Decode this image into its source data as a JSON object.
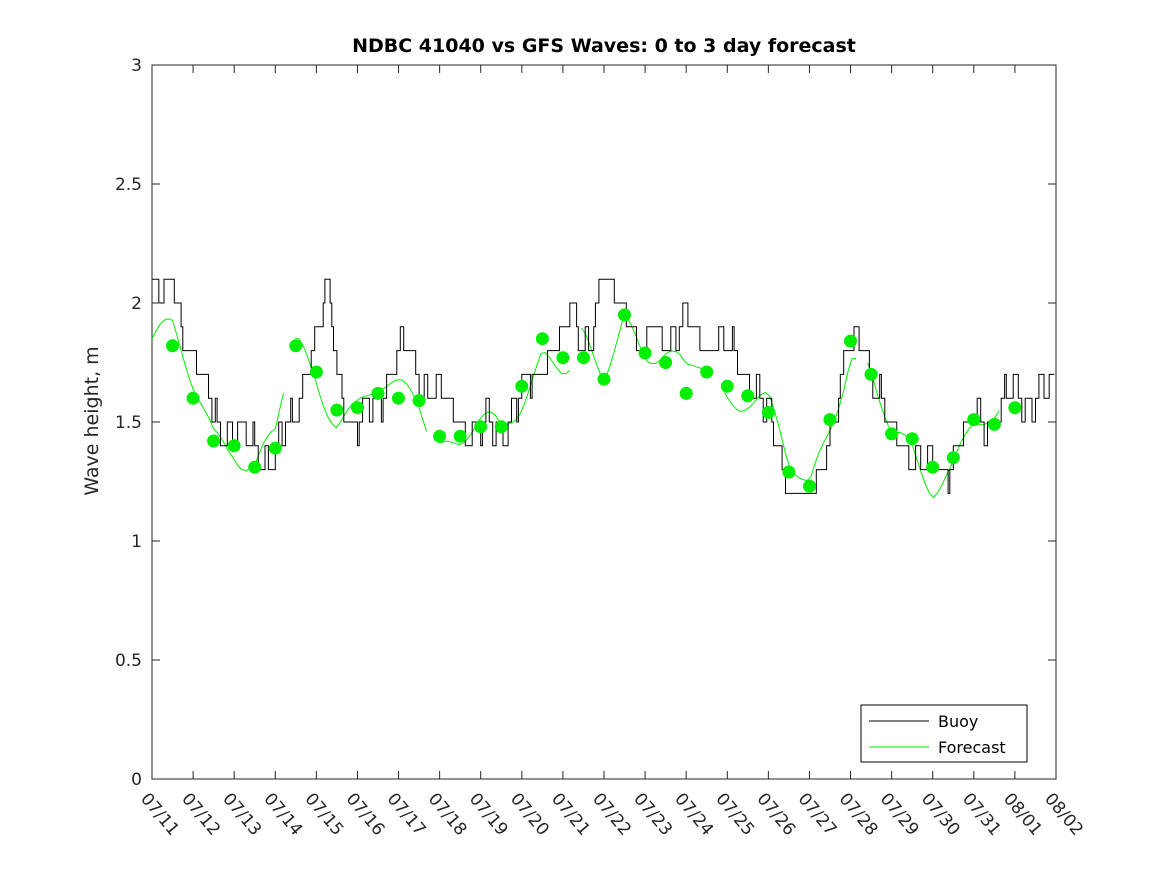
{
  "chart_data": {
    "type": "line",
    "title": "NDBC 41040 vs GFS Waves: 0 to 3 day forecast",
    "xlabel": "",
    "ylabel": "Wave height, m",
    "xlim": [
      "07/11",
      "08/02"
    ],
    "ylim": [
      0,
      3
    ],
    "x_tick_labels": [
      "07/11",
      "07/12",
      "07/13",
      "07/14",
      "07/15",
      "07/16",
      "07/17",
      "07/18",
      "07/19",
      "07/20",
      "07/21",
      "07/22",
      "07/23",
      "07/24",
      "07/25",
      "07/26",
      "07/27",
      "07/28",
      "07/29",
      "07/30",
      "07/31",
      "08/01",
      "08/02"
    ],
    "y_tick_labels": [
      "0",
      "0.5",
      "1",
      "1.5",
      "2",
      "2.5",
      "3"
    ],
    "grid": false,
    "legend_position": "bottom-right",
    "colors": {
      "buoy": "#000000",
      "forecast": "#00ee00",
      "marker": "#00ee00"
    },
    "buoy_anchor_days": [
      0,
      0.25,
      0.5,
      0.75,
      1.0,
      1.5,
      2.0,
      2.5,
      3.0,
      3.4,
      3.7,
      4.0,
      4.3,
      4.5,
      4.8,
      5.0,
      5.5,
      6.0,
      6.5,
      7.0,
      7.5,
      8.0,
      8.5,
      9.0,
      9.5,
      10.0,
      10.2,
      10.5,
      10.8,
      11.0,
      11.3,
      11.5,
      11.8,
      12.0,
      12.2,
      12.5,
      13.0,
      13.5,
      14.0,
      14.5,
      15.0,
      15.5,
      16.0,
      16.5,
      17.0,
      17.3,
      17.5,
      18.0,
      18.5,
      19.0,
      19.5,
      20.0,
      20.5,
      21.0,
      21.5,
      22.0
    ],
    "buoy_anchor_values": [
      2.05,
      2.0,
      2.1,
      1.9,
      1.75,
      1.55,
      1.45,
      1.4,
      1.35,
      1.5,
      1.7,
      1.85,
      2.05,
      1.75,
      1.5,
      1.45,
      1.6,
      1.8,
      1.7,
      1.6,
      1.5,
      1.45,
      1.5,
      1.6,
      1.75,
      1.85,
      1.95,
      1.85,
      1.95,
      2.1,
      2.0,
      2.05,
      1.8,
      1.75,
      1.9,
      1.85,
      1.9,
      1.85,
      1.8,
      1.7,
      1.5,
      1.25,
      1.12,
      1.5,
      1.8,
      1.85,
      1.7,
      1.45,
      1.35,
      1.3,
      1.35,
      1.5,
      1.55,
      1.6,
      1.62,
      1.65
    ],
    "forecast_marker_days": [
      0.5,
      1.0,
      1.5,
      2.0,
      2.5,
      3.0,
      3.5,
      4.0,
      4.5,
      5.0,
      5.5,
      6.0,
      6.5,
      7.0,
      7.5,
      8.0,
      8.5,
      9.0,
      9.5,
      10.0,
      10.5,
      11.0,
      11.5,
      12.0,
      12.5,
      13.0,
      13.5,
      14.0,
      14.5,
      15.0,
      15.5,
      16.0,
      16.5,
      17.0,
      17.5,
      18.0,
      18.5,
      19.0,
      19.5,
      20.0,
      20.5,
      21.0
    ],
    "forecast_marker_values": [
      1.82,
      1.6,
      1.42,
      1.4,
      1.31,
      1.39,
      1.82,
      1.71,
      1.55,
      1.56,
      1.62,
      1.6,
      1.59,
      1.44,
      1.44,
      1.48,
      1.48,
      1.65,
      1.85,
      1.77,
      1.77,
      1.68,
      1.95,
      1.79,
      1.75,
      1.62,
      1.71,
      1.65,
      1.61,
      1.54,
      1.29,
      1.23,
      1.51,
      1.84,
      1.7,
      1.45,
      1.43,
      1.31,
      1.35,
      1.51,
      1.49,
      1.56
    ]
  },
  "legend": {
    "buoy_label": "Buoy",
    "forecast_label": "Forecast"
  }
}
